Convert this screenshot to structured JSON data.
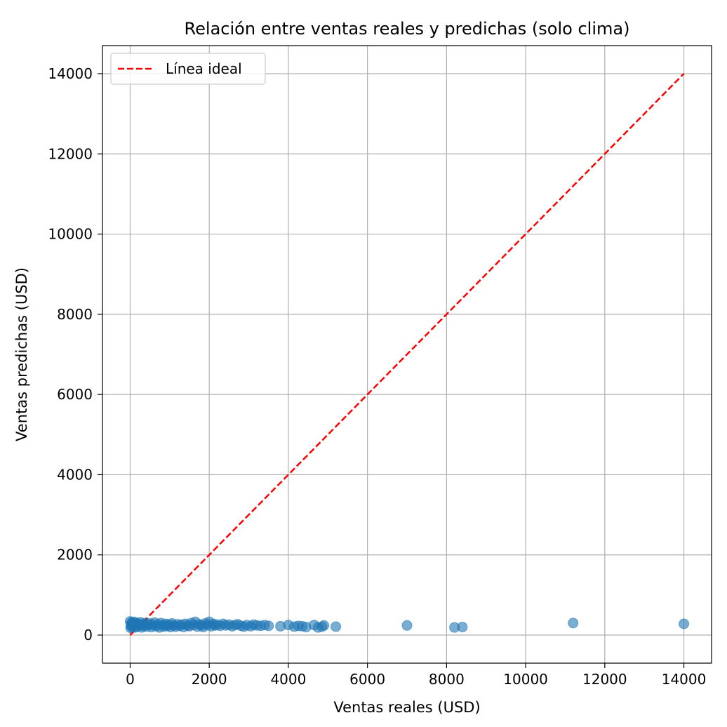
{
  "chart_data": {
    "type": "scatter",
    "title": "Relación entre ventas reales y predichas (solo clima)",
    "xlabel": "Ventas reales (USD)",
    "ylabel": "Ventas predichas (USD)",
    "xlim": [
      -700,
      14700
    ],
    "ylim": [
      -700,
      14700
    ],
    "xticks": [
      0,
      2000,
      4000,
      6000,
      8000,
      10000,
      12000,
      14000
    ],
    "yticks": [
      0,
      2000,
      4000,
      6000,
      8000,
      10000,
      12000,
      14000
    ],
    "grid": true,
    "legend_position": "upper-left",
    "legend": [
      {
        "label": "Línea ideal",
        "style": "dashed",
        "color": "#ff0000"
      }
    ],
    "ideal_line": {
      "x": [
        0,
        14000
      ],
      "y": [
        0,
        14000
      ],
      "color": "#ff0000",
      "style": "dashed"
    },
    "scatter_color": "#1f77b4",
    "points": [
      {
        "x": 0,
        "y": 340
      },
      {
        "x": 10,
        "y": 180
      },
      {
        "x": 20,
        "y": 270
      },
      {
        "x": 30,
        "y": 220
      },
      {
        "x": 40,
        "y": 310
      },
      {
        "x": 50,
        "y": 200
      },
      {
        "x": 60,
        "y": 290
      },
      {
        "x": 80,
        "y": 240
      },
      {
        "x": 100,
        "y": 330
      },
      {
        "x": 120,
        "y": 190
      },
      {
        "x": 140,
        "y": 260
      },
      {
        "x": 160,
        "y": 300
      },
      {
        "x": 180,
        "y": 210
      },
      {
        "x": 200,
        "y": 280
      },
      {
        "x": 230,
        "y": 240
      },
      {
        "x": 260,
        "y": 320
      },
      {
        "x": 290,
        "y": 190
      },
      {
        "x": 320,
        "y": 270
      },
      {
        "x": 350,
        "y": 230
      },
      {
        "x": 380,
        "y": 300
      },
      {
        "x": 420,
        "y": 210
      },
      {
        "x": 460,
        "y": 260
      },
      {
        "x": 500,
        "y": 290
      },
      {
        "x": 540,
        "y": 200
      },
      {
        "x": 580,
        "y": 250
      },
      {
        "x": 620,
        "y": 310
      },
      {
        "x": 660,
        "y": 220
      },
      {
        "x": 700,
        "y": 270
      },
      {
        "x": 740,
        "y": 190
      },
      {
        "x": 780,
        "y": 300
      },
      {
        "x": 820,
        "y": 240
      },
      {
        "x": 860,
        "y": 210
      },
      {
        "x": 900,
        "y": 280
      },
      {
        "x": 940,
        "y": 230
      },
      {
        "x": 980,
        "y": 260
      },
      {
        "x": 1020,
        "y": 200
      },
      {
        "x": 1060,
        "y": 290
      },
      {
        "x": 1100,
        "y": 240
      },
      {
        "x": 1150,
        "y": 210
      },
      {
        "x": 1200,
        "y": 270
      },
      {
        "x": 1250,
        "y": 230
      },
      {
        "x": 1300,
        "y": 260
      },
      {
        "x": 1350,
        "y": 200
      },
      {
        "x": 1400,
        "y": 280
      },
      {
        "x": 1450,
        "y": 240
      },
      {
        "x": 1500,
        "y": 220
      },
      {
        "x": 1550,
        "y": 300
      },
      {
        "x": 1600,
        "y": 250
      },
      {
        "x": 1650,
        "y": 330
      },
      {
        "x": 1700,
        "y": 210
      },
      {
        "x": 1750,
        "y": 270
      },
      {
        "x": 1800,
        "y": 240
      },
      {
        "x": 1850,
        "y": 200
      },
      {
        "x": 1900,
        "y": 290
      },
      {
        "x": 1950,
        "y": 250
      },
      {
        "x": 2000,
        "y": 330
      },
      {
        "x": 2050,
        "y": 220
      },
      {
        "x": 2100,
        "y": 280
      },
      {
        "x": 2150,
        "y": 240
      },
      {
        "x": 2200,
        "y": 260
      },
      {
        "x": 2280,
        "y": 230
      },
      {
        "x": 2350,
        "y": 280
      },
      {
        "x": 2420,
        "y": 240
      },
      {
        "x": 2500,
        "y": 260
      },
      {
        "x": 2580,
        "y": 220
      },
      {
        "x": 2650,
        "y": 250
      },
      {
        "x": 2720,
        "y": 270
      },
      {
        "x": 2800,
        "y": 230
      },
      {
        "x": 2880,
        "y": 210
      },
      {
        "x": 2950,
        "y": 250
      },
      {
        "x": 3050,
        "y": 220
      },
      {
        "x": 3120,
        "y": 260
      },
      {
        "x": 3200,
        "y": 240
      },
      {
        "x": 3300,
        "y": 230
      },
      {
        "x": 3400,
        "y": 250
      },
      {
        "x": 3500,
        "y": 230
      },
      {
        "x": 3800,
        "y": 220
      },
      {
        "x": 4000,
        "y": 250
      },
      {
        "x": 4150,
        "y": 210
      },
      {
        "x": 4250,
        "y": 230
      },
      {
        "x": 4350,
        "y": 220
      },
      {
        "x": 4450,
        "y": 200
      },
      {
        "x": 4650,
        "y": 250
      },
      {
        "x": 4750,
        "y": 190
      },
      {
        "x": 4850,
        "y": 210
      },
      {
        "x": 4900,
        "y": 240
      },
      {
        "x": 5200,
        "y": 210
      },
      {
        "x": 7000,
        "y": 240
      },
      {
        "x": 8200,
        "y": 190
      },
      {
        "x": 8400,
        "y": 200
      },
      {
        "x": 11200,
        "y": 300
      },
      {
        "x": 14000,
        "y": 280
      }
    ]
  }
}
